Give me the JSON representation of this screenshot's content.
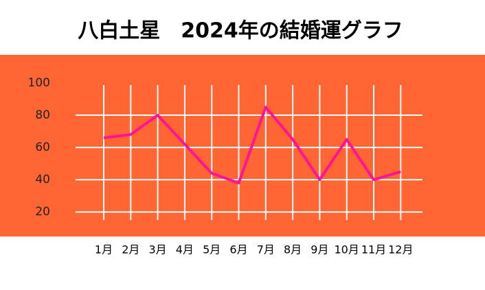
{
  "chart_data": {
    "type": "line",
    "title": "八白土星　2024年の結婚運グラフ",
    "categories": [
      "1月",
      "2月",
      "3月",
      "4月",
      "5月",
      "6月",
      "7月",
      "8月",
      "9月",
      "10月",
      "11月",
      "12月"
    ],
    "values": [
      66,
      68,
      80,
      62,
      44,
      38,
      85,
      65,
      40,
      65,
      40,
      45
    ],
    "color": "#ff1493",
    "background": "#ff6633",
    "grid": true,
    "ylim": [
      15,
      100
    ],
    "yticks": [
      20,
      40,
      60,
      80,
      100
    ]
  }
}
